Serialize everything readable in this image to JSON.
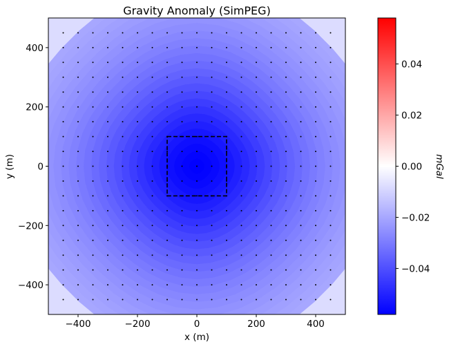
{
  "chart_data": {
    "type": "heatmap",
    "subtype": "filled-contour",
    "title": "Gravity Anomaly (SimPEG)",
    "xlabel": "x (m)",
    "ylabel": "y (m)",
    "xlim": [
      -500,
      500
    ],
    "ylim": [
      -500,
      500
    ],
    "x_ticks": [
      -400,
      -200,
      0,
      200,
      400
    ],
    "x_tick_labels": [
      "−400",
      "−200",
      "0",
      "200",
      "400"
    ],
    "y_ticks": [
      -400,
      -200,
      0,
      200,
      400
    ],
    "y_tick_labels": [
      "−400",
      "−200",
      "0",
      "200",
      "400"
    ],
    "grid": false,
    "field": {
      "description": "Negative gravity anomaly centered at the origin",
      "center": [
        0,
        0
      ],
      "min_value": -0.058,
      "value_at_edge": -0.008,
      "units": "mGal"
    },
    "receivers": {
      "x_start": -450,
      "x_end": 450,
      "y_start": -450,
      "y_end": 450,
      "spacing": 50,
      "marker": "dot"
    },
    "source_outline": {
      "style": "dashed",
      "x": [
        -100,
        100
      ],
      "y": [
        -100,
        100
      ]
    },
    "colorbar": {
      "label": "mGal",
      "colormap": "bwr",
      "range": [
        -0.058,
        0.058
      ],
      "ticks": [
        -0.04,
        -0.02,
        0.0,
        0.02,
        0.04
      ],
      "tick_labels": [
        "−0.04",
        "−0.02",
        "0.00",
        "0.02",
        "0.04"
      ],
      "colors": {
        "min": "#0000ff",
        "mid": "#ffffff",
        "max": "#ff0000"
      }
    }
  }
}
